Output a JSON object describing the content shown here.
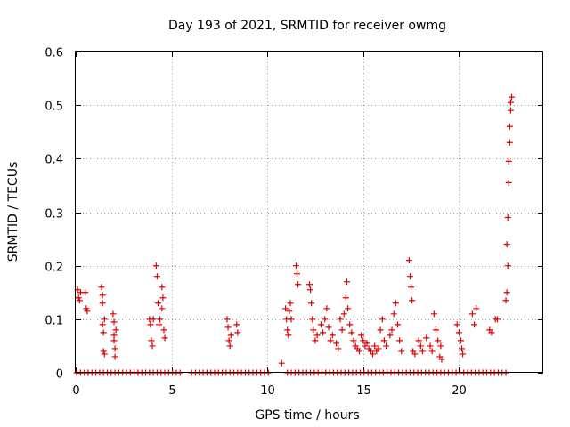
{
  "chart_data": {
    "type": "scatter",
    "title": "Day 193 of 2021, SRMTID for receiver owmg",
    "xlabel": "GPS time / hours",
    "ylabel": "SRMTID / TECUs",
    "xlim": [
      0,
      24.4
    ],
    "ylim": [
      0,
      0.6
    ],
    "x_ticks": [
      0,
      5,
      10,
      15,
      20
    ],
    "x_tick_labels": [
      "0",
      "5",
      "10",
      "15",
      "20"
    ],
    "y_ticks": [
      0,
      0.1,
      0.2,
      0.3,
      0.4,
      0.5,
      0.6
    ],
    "y_tick_labels": [
      "0",
      "0.1",
      "0.2",
      "0.3",
      "0.4",
      "0.5",
      "0.6"
    ],
    "grid": true,
    "marker": "+",
    "color": "#e00000",
    "series": [
      {
        "name": "SRMTID",
        "points": [
          [
            0.1,
            0.155
          ],
          [
            0.15,
            0.14
          ],
          [
            0.2,
            0.135
          ],
          [
            0.25,
            0.15
          ],
          [
            0.5,
            0.15
          ],
          [
            0.55,
            0.12
          ],
          [
            0.6,
            0.115
          ],
          [
            1.35,
            0.16
          ],
          [
            1.4,
            0.13
          ],
          [
            1.4,
            0.09
          ],
          [
            1.45,
            0.075
          ],
          [
            1.45,
            0.04
          ],
          [
            1.5,
            0.035
          ],
          [
            1.5,
            0.1
          ],
          [
            1.4,
            0.145
          ],
          [
            1.95,
            0.11
          ],
          [
            2.0,
            0.095
          ],
          [
            2.0,
            0.06
          ],
          [
            2.05,
            0.045
          ],
          [
            2.05,
            0.03
          ],
          [
            2.1,
            0.08
          ],
          [
            2.0,
            0.07
          ],
          [
            3.85,
            0.1
          ],
          [
            3.9,
            0.09
          ],
          [
            3.95,
            0.06
          ],
          [
            4.0,
            0.05
          ],
          [
            4.05,
            0.1
          ],
          [
            4.2,
            0.2
          ],
          [
            4.25,
            0.18
          ],
          [
            4.3,
            0.13
          ],
          [
            4.35,
            0.09
          ],
          [
            4.4,
            0.1
          ],
          [
            4.5,
            0.16
          ],
          [
            4.55,
            0.14
          ],
          [
            4.6,
            0.08
          ],
          [
            4.65,
            0.065
          ],
          [
            4.5,
            0.12
          ],
          [
            7.9,
            0.1
          ],
          [
            7.95,
            0.085
          ],
          [
            8.0,
            0.06
          ],
          [
            8.05,
            0.05
          ],
          [
            8.1,
            0.07
          ],
          [
            8.4,
            0.09
          ],
          [
            8.45,
            0.075
          ],
          [
            10.75,
            0.018
          ],
          [
            10.95,
            0.12
          ],
          [
            11.0,
            0.1
          ],
          [
            11.05,
            0.08
          ],
          [
            11.1,
            0.07
          ],
          [
            11.15,
            0.115
          ],
          [
            11.2,
            0.13
          ],
          [
            11.25,
            0.1
          ],
          [
            11.5,
            0.2
          ],
          [
            11.55,
            0.185
          ],
          [
            11.6,
            0.165
          ],
          [
            12.2,
            0.165
          ],
          [
            12.25,
            0.155
          ],
          [
            12.3,
            0.13
          ],
          [
            12.35,
            0.1
          ],
          [
            12.4,
            0.08
          ],
          [
            12.5,
            0.06
          ],
          [
            12.6,
            0.07
          ],
          [
            12.8,
            0.09
          ],
          [
            12.9,
            0.075
          ],
          [
            13.0,
            0.1
          ],
          [
            13.1,
            0.12
          ],
          [
            13.2,
            0.085
          ],
          [
            13.3,
            0.06
          ],
          [
            13.4,
            0.07
          ],
          [
            13.6,
            0.055
          ],
          [
            13.7,
            0.045
          ],
          [
            13.8,
            0.1
          ],
          [
            13.9,
            0.08
          ],
          [
            14.0,
            0.11
          ],
          [
            14.1,
            0.14
          ],
          [
            14.15,
            0.17
          ],
          [
            14.2,
            0.12
          ],
          [
            14.3,
            0.09
          ],
          [
            14.4,
            0.075
          ],
          [
            14.5,
            0.06
          ],
          [
            14.6,
            0.05
          ],
          [
            14.7,
            0.045
          ],
          [
            14.8,
            0.04
          ],
          [
            14.9,
            0.07
          ],
          [
            15.0,
            0.06
          ],
          [
            15.1,
            0.05
          ],
          [
            15.2,
            0.055
          ],
          [
            15.3,
            0.045
          ],
          [
            15.4,
            0.04
          ],
          [
            15.5,
            0.035
          ],
          [
            15.6,
            0.05
          ],
          [
            15.7,
            0.04
          ],
          [
            15.8,
            0.045
          ],
          [
            15.9,
            0.08
          ],
          [
            16.0,
            0.1
          ],
          [
            16.1,
            0.06
          ],
          [
            16.2,
            0.05
          ],
          [
            16.4,
            0.07
          ],
          [
            16.5,
            0.08
          ],
          [
            16.6,
            0.11
          ],
          [
            16.7,
            0.13
          ],
          [
            16.8,
            0.09
          ],
          [
            16.9,
            0.06
          ],
          [
            17.0,
            0.04
          ],
          [
            17.4,
            0.21
          ],
          [
            17.45,
            0.18
          ],
          [
            17.5,
            0.16
          ],
          [
            17.55,
            0.135
          ],
          [
            17.6,
            0.04
          ],
          [
            17.7,
            0.035
          ],
          [
            17.9,
            0.06
          ],
          [
            18.0,
            0.05
          ],
          [
            18.1,
            0.04
          ],
          [
            18.3,
            0.065
          ],
          [
            18.5,
            0.05
          ],
          [
            18.6,
            0.04
          ],
          [
            18.7,
            0.11
          ],
          [
            18.8,
            0.08
          ],
          [
            18.9,
            0.06
          ],
          [
            19.0,
            0.03
          ],
          [
            19.1,
            0.025
          ],
          [
            19.05,
            0.05
          ],
          [
            19.9,
            0.09
          ],
          [
            20.0,
            0.075
          ],
          [
            20.1,
            0.06
          ],
          [
            20.15,
            0.045
          ],
          [
            20.2,
            0.035
          ],
          [
            20.7,
            0.11
          ],
          [
            20.8,
            0.09
          ],
          [
            20.9,
            0.12
          ],
          [
            21.6,
            0.08
          ],
          [
            21.7,
            0.075
          ],
          [
            21.9,
            0.1
          ],
          [
            22.0,
            0.1
          ],
          [
            22.45,
            0.135
          ],
          [
            22.5,
            0.15
          ],
          [
            22.55,
            0.2
          ],
          [
            22.5,
            0.24
          ],
          [
            22.55,
            0.29
          ],
          [
            22.6,
            0.355
          ],
          [
            22.6,
            0.395
          ],
          [
            22.65,
            0.43
          ],
          [
            22.65,
            0.46
          ],
          [
            22.7,
            0.49
          ],
          [
            22.7,
            0.505
          ],
          [
            22.75,
            0.515
          ]
        ],
        "zero_points_x": [
          0.05,
          0.25,
          0.45,
          0.65,
          0.85,
          1.05,
          1.25,
          1.45,
          1.65,
          1.85,
          2.05,
          2.25,
          2.45,
          2.65,
          2.85,
          3.05,
          3.25,
          3.45,
          3.65,
          3.85,
          4.05,
          4.25,
          4.45,
          4.65,
          4.85,
          5.05,
          5.25,
          5.45,
          6.05,
          6.25,
          6.45,
          6.65,
          6.85,
          7.05,
          7.25,
          7.45,
          7.65,
          7.85,
          8.05,
          8.25,
          8.45,
          8.65,
          8.85,
          9.05,
          9.25,
          9.45,
          9.65,
          9.85,
          10.05,
          11.05,
          11.25,
          11.45,
          11.65,
          11.85,
          12.05,
          12.25,
          12.45,
          12.65,
          12.85,
          13.05,
          13.25,
          13.45,
          13.65,
          13.85,
          14.05,
          14.25,
          14.45,
          14.65,
          14.85,
          15.05,
          15.25,
          15.45,
          15.65,
          15.85,
          16.05,
          16.25,
          16.45,
          16.65,
          16.85,
          17.05,
          17.25,
          17.45,
          17.65,
          17.85,
          18.05,
          18.25,
          18.45,
          18.65,
          18.85,
          19.05,
          19.25,
          19.45,
          19.65,
          19.85,
          20.05,
          20.25,
          20.45,
          20.65,
          20.85,
          21.05,
          21.25,
          21.45,
          21.65,
          21.85,
          22.05,
          22.25,
          22.45
        ]
      }
    ]
  }
}
